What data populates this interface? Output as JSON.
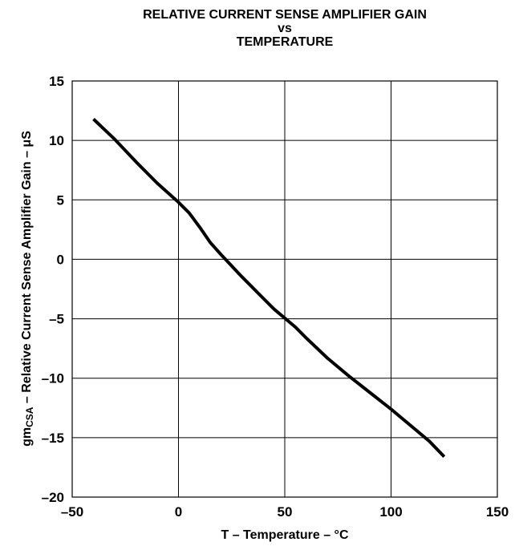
{
  "chart_data": {
    "type": "line",
    "title": [
      "RELATIVE CURRENT SENSE AMPLIFIER GAIN",
      "vs",
      "TEMPERATURE"
    ],
    "xlabel": "T – Temperature – °C",
    "ylabel_prefix": "gm",
    "ylabel_sub": "CSA",
    "ylabel_rest": " – Relative Current Sense Amplifier Gain – μS",
    "xlim": [
      -50,
      150
    ],
    "ylim": [
      -20,
      15
    ],
    "xticks": [
      "–50",
      "0",
      "50",
      "100",
      "150"
    ],
    "yticks": [
      "15",
      "10",
      "5",
      "0",
      "–5",
      "–10",
      "–15",
      "–20"
    ],
    "grid": true,
    "series": [
      {
        "color": "#000000",
        "x": [
          -40,
          -30,
          -20,
          -10,
          0,
          5,
          10,
          15,
          20,
          30,
          40,
          45,
          55,
          60,
          70,
          80,
          90,
          100,
          110,
          118,
          125
        ],
        "y": [
          11.8,
          10.1,
          8.2,
          6.4,
          4.8,
          3.9,
          2.7,
          1.4,
          0.4,
          -1.5,
          -3.3,
          -4.2,
          -5.7,
          -6.6,
          -8.3,
          -9.8,
          -11.2,
          -12.6,
          -14.1,
          -15.3,
          -16.6
        ]
      }
    ]
  }
}
